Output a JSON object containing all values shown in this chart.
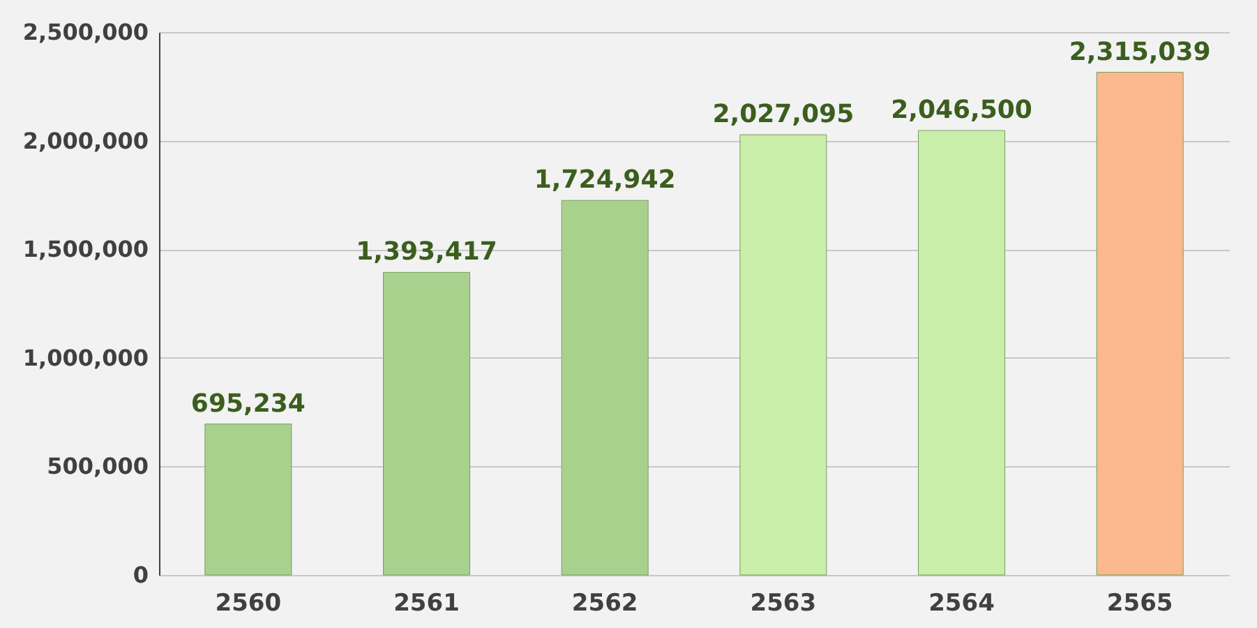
{
  "chart_data": {
    "type": "bar",
    "categories": [
      "2560",
      "2561",
      "2562",
      "2563",
      "2564",
      "2565"
    ],
    "values": [
      695234,
      1393417,
      1724942,
      2027095,
      2046500,
      2315039
    ],
    "colors": [
      "#a9d18e",
      "#a9d18e",
      "#a9d18e",
      "#c9eeaa",
      "#c9eeaa",
      "#fbb98d"
    ],
    "ylim": [
      0,
      2500000
    ],
    "yticks": [
      {
        "value": 0,
        "label": "0"
      },
      {
        "value": 500000,
        "label": "500,000"
      },
      {
        "value": 1000000,
        "label": "1,000,000"
      },
      {
        "value": 1500000,
        "label": "1,500,000"
      },
      {
        "value": 2000000,
        "label": "2,000,000"
      },
      {
        "value": 2500000,
        "label": "2,500,000"
      }
    ],
    "value_labels": [
      "695,234",
      "1,393,417",
      "1,724,942",
      "2,027,095",
      "2,046,500",
      "2,315,039"
    ],
    "grid": "y"
  }
}
